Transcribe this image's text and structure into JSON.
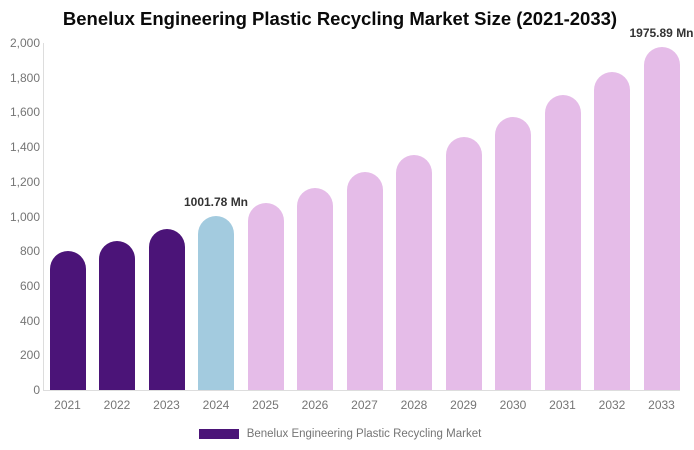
{
  "title": "Benelux Engineering Plastic Recycling Market Size (2021-2033)",
  "legend": {
    "label": "Benelux Engineering Plastic Recycling Market",
    "swatch_color": "#4B1478"
  },
  "colors": {
    "historical_bar": "#4B1478",
    "base_year_bar": "#A3CBDF",
    "forecast_bar": "#E5BCE8",
    "axis_line": "#DDDDDD",
    "tick_text": "#757575",
    "data_label_text": "#333333",
    "title_text": "#0A0A0A"
  },
  "y_axis": {
    "ticks": [
      "0",
      "200",
      "400",
      "600",
      "800",
      "1,000",
      "1,200",
      "1,400",
      "1,600",
      "1,800",
      "2,000"
    ],
    "min": 0,
    "max": 2000
  },
  "chart_data": {
    "type": "bar",
    "title": "Benelux Engineering Plastic Recycling Market Size (2021-2033)",
    "unit": "Mn",
    "categories": [
      "2021",
      "2022",
      "2023",
      "2024",
      "2025",
      "2026",
      "2027",
      "2028",
      "2029",
      "2030",
      "2031",
      "2032",
      "2033"
    ],
    "values": [
      798.8,
      861.4,
      929.0,
      1001.78,
      1080.3,
      1165.0,
      1256.3,
      1354.8,
      1461.0,
      1575.5,
      1699.1,
      1832.2,
      1975.89
    ],
    "bar_colors": [
      "#4B1478",
      "#4B1478",
      "#4B1478",
      "#A3CBDF",
      "#E5BCE8",
      "#E5BCE8",
      "#E5BCE8",
      "#E5BCE8",
      "#E5BCE8",
      "#E5BCE8",
      "#E5BCE8",
      "#E5BCE8",
      "#E5BCE8"
    ],
    "data_labels": [
      {
        "year": "2024",
        "text": "1001.78 Mn"
      },
      {
        "year": "2033",
        "text": "1975.89 Mn"
      }
    ],
    "xlabel": "",
    "ylabel": "",
    "ylim": [
      0,
      2000
    ],
    "grid": false,
    "legend_entries": [
      "Benelux Engineering Plastic Recycling Market"
    ],
    "legend_position": "bottom"
  }
}
